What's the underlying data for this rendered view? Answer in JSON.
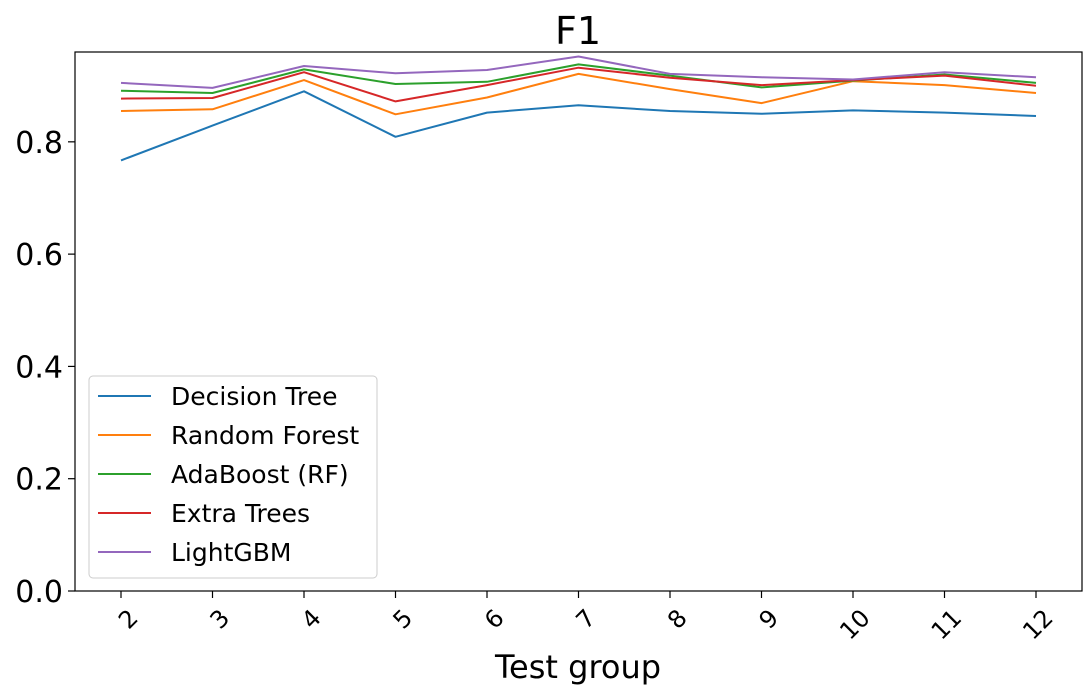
{
  "chart_data": {
    "type": "line",
    "title": "F1",
    "xlabel": "Test group",
    "ylabel": "",
    "categories": [
      "2",
      "3",
      "4",
      "5",
      "6",
      "7",
      "8",
      "9",
      "10",
      "11",
      "12"
    ],
    "ylim": [
      0.0,
      0.96
    ],
    "yticks": [
      "0.0",
      "0.2",
      "0.4",
      "0.6",
      "0.8"
    ],
    "grid": false,
    "legend_position": "lower-left",
    "series": [
      {
        "name": "Decision Tree",
        "color": "#1f77b4",
        "values": [
          0.767,
          0.829,
          0.89,
          0.809,
          0.852,
          0.865,
          0.855,
          0.85,
          0.856,
          0.852,
          0.846
        ]
      },
      {
        "name": "Random Forest",
        "color": "#ff7f0e",
        "values": [
          0.855,
          0.858,
          0.91,
          0.849,
          0.879,
          0.921,
          0.894,
          0.869,
          0.908,
          0.901,
          0.887
        ]
      },
      {
        "name": "AdaBoost (RF)",
        "color": "#2ca02c",
        "values": [
          0.891,
          0.887,
          0.929,
          0.903,
          0.907,
          0.938,
          0.918,
          0.897,
          0.909,
          0.92,
          0.905
        ]
      },
      {
        "name": "Extra Trees",
        "color": "#d62728",
        "values": [
          0.877,
          0.878,
          0.924,
          0.872,
          0.901,
          0.932,
          0.914,
          0.901,
          0.91,
          0.918,
          0.9
        ]
      },
      {
        "name": "LightGBM",
        "color": "#9467bd",
        "values": [
          0.905,
          0.896,
          0.935,
          0.922,
          0.928,
          0.952,
          0.921,
          0.915,
          0.911,
          0.924,
          0.915
        ]
      }
    ]
  }
}
